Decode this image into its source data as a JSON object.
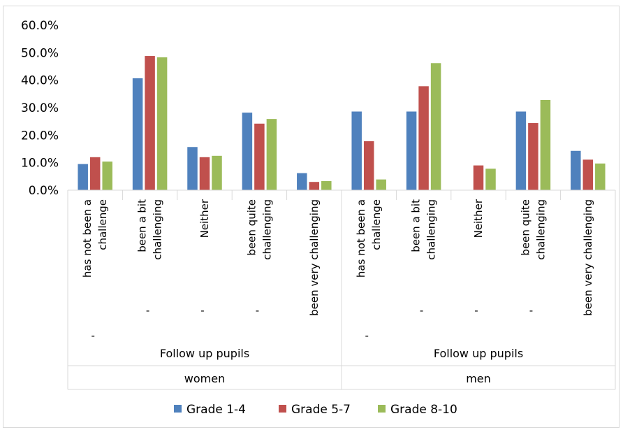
{
  "chart_data": {
    "type": "bar",
    "ylim": [
      0,
      60
    ],
    "yticks": [
      "0.0%",
      "10.0%",
      "20.0%",
      "30.0%",
      "40.0%",
      "50.0%",
      "60.0%"
    ],
    "grid": false,
    "legend": "bottom",
    "colors": [
      "#4f81bd",
      "#c0504d",
      "#9bbb59"
    ],
    "categories": [
      [
        "has not been a",
        "challenge"
      ],
      [
        "been a bit",
        "challenging"
      ],
      [
        "Neither"
      ],
      [
        "been quite",
        "challenging"
      ],
      [
        "been very challenging"
      ],
      [
        "has not been a",
        "challenge"
      ],
      [
        "been a bit",
        "challenging"
      ],
      [
        "Neither"
      ],
      [
        "been quite",
        "challenging"
      ],
      [
        "been very challenging"
      ]
    ],
    "dash_label": "-",
    "groups": [
      {
        "label": "Follow up pupils",
        "gender": "women"
      },
      {
        "label": "Follow up pupils",
        "gender": "men"
      }
    ],
    "series": [
      {
        "name": "Grade 1-4",
        "values": [
          9.5,
          40.7,
          15.7,
          28.2,
          6.2,
          28.6,
          28.6,
          0,
          28.6,
          14.3
        ]
      },
      {
        "name": "Grade 5-7",
        "values": [
          12.0,
          48.8,
          12.0,
          24.2,
          3.0,
          17.8,
          37.8,
          9.0,
          24.4,
          11.1
        ]
      },
      {
        "name": "Grade 8-10",
        "values": [
          10.4,
          48.3,
          12.5,
          25.9,
          3.3,
          3.9,
          46.2,
          7.8,
          32.8,
          9.7
        ]
      }
    ]
  }
}
